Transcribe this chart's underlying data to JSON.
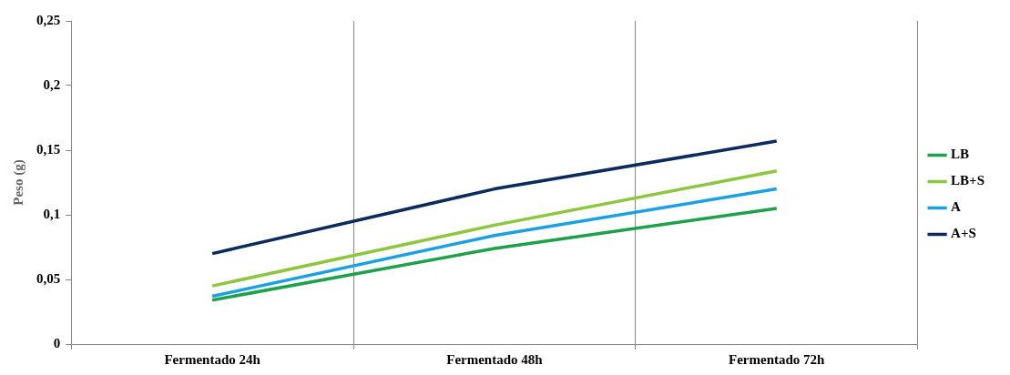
{
  "chart_data": {
    "type": "line",
    "ylabel": "Peso (g)",
    "categories": [
      "Fermentado 24h",
      "Fermentado 48h",
      "Fermentado 72h"
    ],
    "series": [
      {
        "name": "LB",
        "color": "#1fa04a",
        "values": [
          0.034,
          0.074,
          0.105
        ]
      },
      {
        "name": "LB+S",
        "color": "#8dc63f",
        "values": [
          0.045,
          0.092,
          0.134
        ]
      },
      {
        "name": "A",
        "color": "#1ba1e2",
        "values": [
          0.037,
          0.084,
          0.12
        ]
      },
      {
        "name": "A+S",
        "color": "#0d2a5c",
        "values": [
          0.07,
          0.12,
          0.157
        ]
      }
    ],
    "ylim": [
      0,
      0.25
    ],
    "yticks": [
      0,
      {
        "value": 0.05,
        "label": "0,05"
      },
      {
        "value": 0.1,
        "label": "0,1"
      },
      {
        "value": 0.15,
        "label": "0,15"
      },
      {
        "value": 0.2,
        "label": "0,2"
      },
      {
        "value": 0.25,
        "label": "0,25"
      }
    ],
    "grid": "x",
    "legend": "right",
    "marker": "none",
    "line_style": "solid"
  }
}
